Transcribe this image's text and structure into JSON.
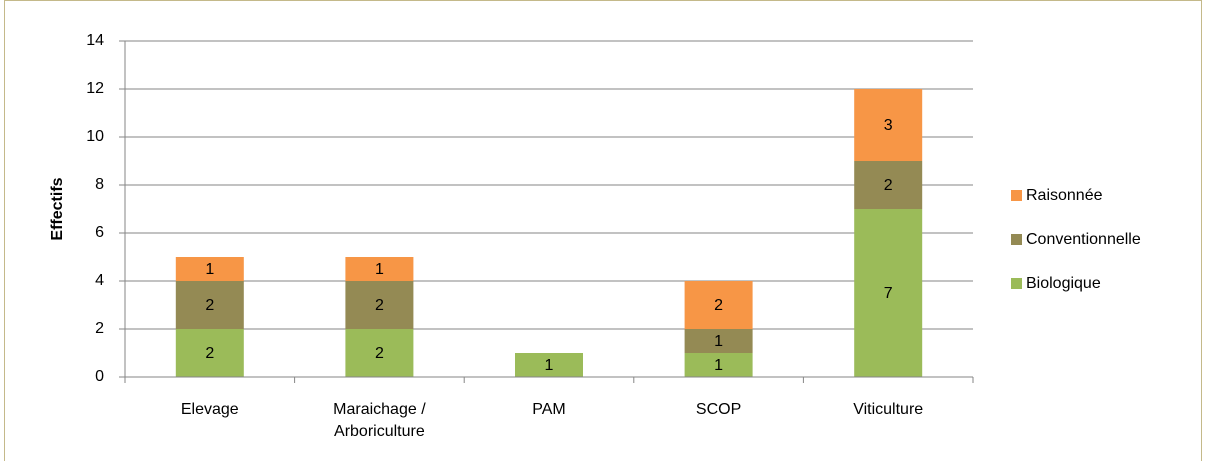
{
  "chart_data": {
    "type": "stacked_bar",
    "y_label": "Effectifs",
    "categories": [
      "Elevage",
      "Maraichage / Arboriculture",
      "PAM",
      "SCOP",
      "Viticulture"
    ],
    "series": [
      {
        "name": "Biologique",
        "color": "#9bbb59",
        "values": [
          2,
          2,
          1,
          1,
          7
        ]
      },
      {
        "name": "Conventionnelle",
        "color": "#948a54",
        "values": [
          2,
          2,
          null,
          1,
          2
        ]
      },
      {
        "name": "Raisonnée",
        "color": "#f79646",
        "values": [
          1,
          1,
          null,
          2,
          3
        ]
      }
    ],
    "ylim": [
      0,
      14
    ],
    "yticks": [
      0,
      2,
      4,
      6,
      8,
      10,
      12,
      14
    ],
    "grid": true,
    "legend": "right"
  }
}
